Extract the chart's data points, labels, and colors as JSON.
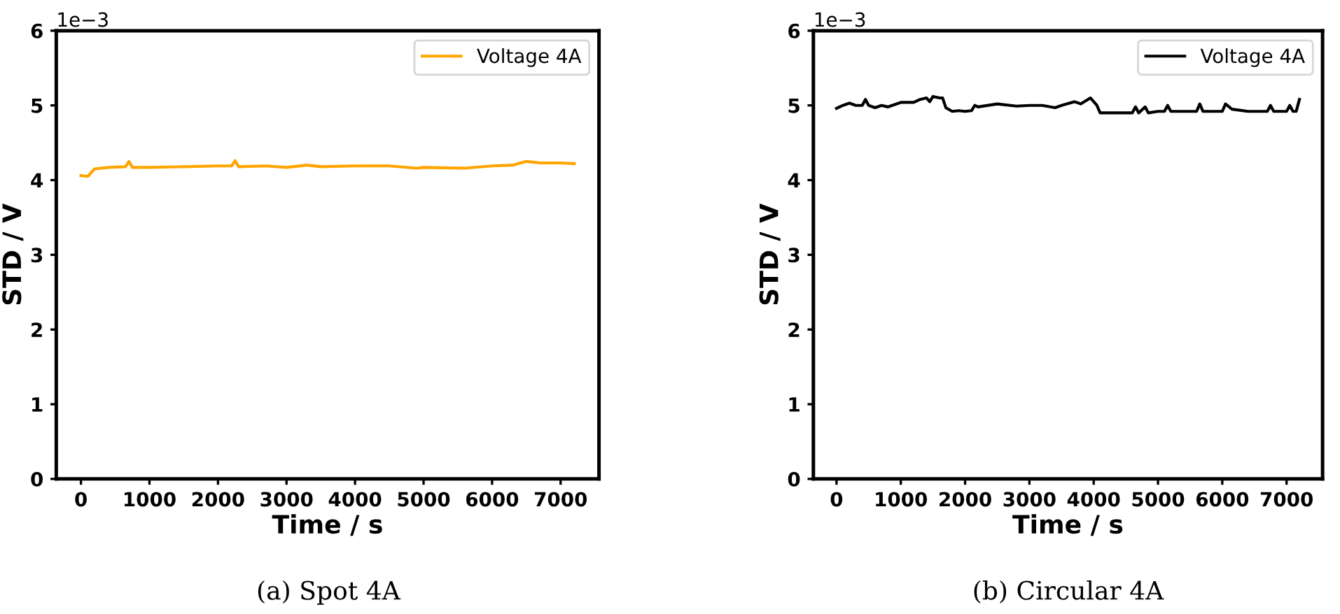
{
  "chart_data": [
    {
      "type": "line",
      "xlabel": "Time / s",
      "ylabel": "STD / V",
      "annotations": [
        "1e−3",
        "(a) Spot 4A"
      ],
      "xlim": [
        -360,
        7560
      ],
      "ylim": [
        0,
        6
      ],
      "xticks": [
        0,
        1000,
        2000,
        3000,
        4000,
        5000,
        6000,
        7000
      ],
      "yticks": [
        0,
        1,
        2,
        3,
        4,
        5,
        6
      ],
      "grid": false,
      "legend": "top right",
      "series": [
        {
          "name": "Voltage 4A",
          "color": "#ffa500",
          "x": [
            0,
            100,
            200,
            400,
            650,
            700,
            750,
            1000,
            1500,
            2000,
            2200,
            2250,
            2300,
            2700,
            3000,
            3300,
            3500,
            4000,
            4500,
            4900,
            5000,
            5500,
            5600,
            6000,
            6300,
            6500,
            6700,
            7000,
            7200
          ],
          "values": [
            4.06,
            4.05,
            4.15,
            4.17,
            4.18,
            4.25,
            4.17,
            4.17,
            4.18,
            4.19,
            4.19,
            4.26,
            4.18,
            4.19,
            4.17,
            4.2,
            4.18,
            4.19,
            4.19,
            4.16,
            4.17,
            4.16,
            4.16,
            4.19,
            4.2,
            4.25,
            4.23,
            4.23,
            4.22
          ]
        }
      ]
    },
    {
      "type": "line",
      "xlabel": "Time / s",
      "ylabel": "STD / V",
      "annotations": [
        "1e−3",
        "(b) Circular 4A"
      ],
      "xlim": [
        -360,
        7560
      ],
      "ylim": [
        0,
        6
      ],
      "xticks": [
        0,
        1000,
        2000,
        3000,
        4000,
        5000,
        6000,
        7000
      ],
      "yticks": [
        0,
        1,
        2,
        3,
        4,
        5,
        6
      ],
      "grid": false,
      "legend": "top right",
      "series": [
        {
          "name": "Voltage 4A",
          "color": "#000000",
          "x": [
            0,
            100,
            200,
            300,
            400,
            450,
            500,
            600,
            700,
            800,
            1000,
            1200,
            1300,
            1400,
            1450,
            1500,
            1600,
            1650,
            1700,
            1800,
            1900,
            2000,
            2100,
            2150,
            2200,
            2500,
            2800,
            3000,
            3200,
            3400,
            3500,
            3700,
            3800,
            3950,
            4050,
            4100,
            4300,
            4600,
            4650,
            4700,
            4800,
            4850,
            5000,
            5100,
            5150,
            5200,
            5400,
            5600,
            5650,
            5700,
            6000,
            6050,
            6150,
            6400,
            6700,
            6750,
            6800,
            7000,
            7050,
            7100,
            7150,
            7200
          ],
          "values": [
            4.96,
            5.0,
            5.03,
            5.0,
            5.0,
            5.08,
            5.0,
            4.97,
            5.0,
            4.98,
            5.04,
            5.04,
            5.08,
            5.1,
            5.05,
            5.12,
            5.1,
            5.1,
            4.97,
            4.92,
            4.93,
            4.92,
            4.93,
            5.0,
            4.98,
            5.02,
            4.99,
            5.0,
            5.0,
            4.97,
            5.0,
            5.05,
            5.02,
            5.1,
            5.0,
            4.9,
            4.9,
            4.9,
            4.98,
            4.9,
            4.98,
            4.9,
            4.92,
            4.92,
            5.0,
            4.92,
            4.92,
            4.92,
            5.02,
            4.92,
            4.92,
            5.02,
            4.95,
            4.92,
            4.92,
            5.0,
            4.92,
            4.92,
            5.0,
            4.92,
            4.92,
            5.08
          ]
        }
      ]
    }
  ]
}
